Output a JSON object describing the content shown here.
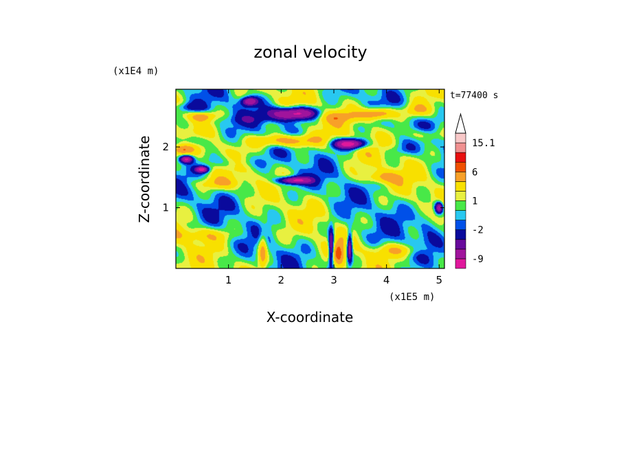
{
  "chart_data": {
    "type": "heatmap",
    "title": "zonal velocity",
    "xlabel": "X-coordinate",
    "ylabel": "Z-coordinate",
    "x_unit": "(x1E5 m)",
    "y_unit": "(x1E4 m)",
    "time_label": "t=77400 s",
    "xlim": [
      0.0,
      5.1
    ],
    "ylim": [
      0.0,
      2.95
    ],
    "x_ticks": [
      1,
      2,
      3,
      4,
      5
    ],
    "y_ticks": [
      1,
      2
    ],
    "colorbar": {
      "levels": [
        -12,
        -9,
        -6,
        -4,
        -2,
        -1,
        0,
        1,
        2,
        4,
        6,
        9,
        12,
        15.1
      ],
      "tick_labels": [
        {
          "text": "15.1",
          "value": 15.1
        },
        {
          "text": "6",
          "value": 6
        },
        {
          "text": "1",
          "value": 1
        },
        {
          "text": "-2",
          "value": -2
        },
        {
          "text": "-9",
          "value": -9
        }
      ],
      "colors": [
        "#e0189c",
        "#a0149c",
        "#680a9c",
        "#0a0a9c",
        "#0050e8",
        "#28c8f0",
        "#48e848",
        "#e8f040",
        "#f8e000",
        "#f8a028",
        "#f05000",
        "#e81010",
        "#f09090",
        "#f8c8c8"
      ],
      "extend_max": true
    },
    "field": {
      "background": 0.5,
      "blobs": [
        {
          "x": 0.3,
          "z": 2.1,
          "sx": 0.35,
          "sz": 0.09,
          "v": -3
        },
        {
          "x": 0.5,
          "z": 2.5,
          "sx": 0.25,
          "sz": 0.08,
          "v": 5
        },
        {
          "x": 0.25,
          "z": 2.65,
          "sx": 0.3,
          "sz": 0.08,
          "v": -3
        },
        {
          "x": 0.2,
          "z": 1.8,
          "sx": 0.12,
          "sz": 0.06,
          "v": -10
        },
        {
          "x": 0.5,
          "z": 1.63,
          "sx": 0.12,
          "sz": 0.05,
          "v": -10
        },
        {
          "x": 0.1,
          "z": 1.95,
          "sx": 0.2,
          "sz": 0.08,
          "v": 4
        },
        {
          "x": 1.4,
          "z": 2.75,
          "sx": 0.15,
          "sz": 0.07,
          "v": -9
        },
        {
          "x": 1.8,
          "z": 1.35,
          "sx": 0.6,
          "sz": 0.2,
          "v": -0.8
        },
        {
          "x": 1.6,
          "z": 2.45,
          "sx": 0.8,
          "sz": 0.08,
          "v": -1.5
        },
        {
          "x": 2.25,
          "z": 2.55,
          "sx": 0.45,
          "sz": 0.1,
          "v": -12
        },
        {
          "x": 1.9,
          "z": 2.1,
          "sx": 0.5,
          "sz": 0.1,
          "v": 4
        },
        {
          "x": 1.05,
          "z": 1.75,
          "sx": 0.6,
          "sz": 0.12,
          "v": -2
        },
        {
          "x": 2.25,
          "z": 1.45,
          "sx": 0.3,
          "sz": 0.06,
          "v": -10
        },
        {
          "x": 3.3,
          "z": 2.05,
          "sx": 0.3,
          "sz": 0.08,
          "v": -12
        },
        {
          "x": 3.1,
          "z": 2.5,
          "sx": 0.6,
          "sz": 0.1,
          "v": 3
        },
        {
          "x": 3.85,
          "z": 2.55,
          "sx": 0.3,
          "sz": 0.1,
          "v": 7
        },
        {
          "x": 4.6,
          "z": 2.6,
          "sx": 0.3,
          "sz": 0.12,
          "v": 4
        },
        {
          "x": 4.7,
          "z": 2.2,
          "sx": 0.4,
          "sz": 0.1,
          "v": 3
        },
        {
          "x": 2.3,
          "z": 2.1,
          "sx": 0.45,
          "sz": 0.1,
          "v": 4
        },
        {
          "x": 3.9,
          "z": 1.5,
          "sx": 0.35,
          "sz": 0.1,
          "v": 4
        },
        {
          "x": 4.8,
          "z": 0.8,
          "sx": 0.2,
          "sz": 0.25,
          "v": -2
        },
        {
          "x": 5.0,
          "z": 1.0,
          "sx": 0.08,
          "sz": 0.1,
          "v": -10
        },
        {
          "x": 1.3,
          "z": 1.05,
          "sx": 0.8,
          "sz": 0.18,
          "v": -0.6
        },
        {
          "x": 0.5,
          "z": 0.55,
          "sx": 0.6,
          "sz": 0.12,
          "v": 3
        },
        {
          "x": 3.7,
          "z": 0.55,
          "sx": 0.8,
          "sz": 0.18,
          "v": -0.6
        },
        {
          "x": 4.2,
          "z": 0.3,
          "sx": 0.5,
          "sz": 0.1,
          "v": 3
        },
        {
          "x": 1.65,
          "z": 0.3,
          "sx": 0.08,
          "sz": 0.3,
          "v": 5
        },
        {
          "x": 2.95,
          "z": 0.35,
          "sx": 0.05,
          "sz": 0.3,
          "v": -9
        },
        {
          "x": 3.3,
          "z": 0.35,
          "sx": 0.05,
          "sz": 0.25,
          "v": -9
        },
        {
          "x": 3.1,
          "z": 0.25,
          "sx": 0.1,
          "sz": 0.25,
          "v": 4
        },
        {
          "x": 4.3,
          "z": 1.95,
          "sx": 0.35,
          "sz": 0.08,
          "v": -1.2
        },
        {
          "x": 0.8,
          "z": 1.4,
          "sx": 0.5,
          "sz": 0.1,
          "v": 3
        }
      ]
    }
  }
}
